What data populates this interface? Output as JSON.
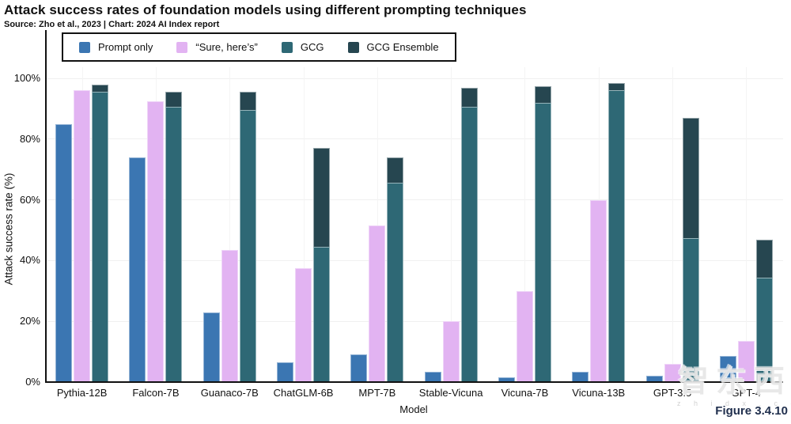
{
  "header": {
    "title": "Attack success rates of foundation models using different prompting techniques",
    "source": "Source: Zho et al., 2023 | Chart: 2024 AI Index report"
  },
  "figure_label": "Figure 3.4.10",
  "watermark": {
    "text": "智东西",
    "subtext": "z h i d x . c o m"
  },
  "chart_data": {
    "type": "bar",
    "title": "Attack success rates of foundation models using different prompting techniques",
    "xlabel": "Model",
    "ylabel": "Attack success rate (%)",
    "ylim": [
      0,
      110
    ],
    "yticks": [
      0,
      20,
      40,
      60,
      80,
      100
    ],
    "ytick_labels": [
      "0%",
      "20%",
      "40%",
      "60%",
      "80%",
      "100%"
    ],
    "grid": true,
    "legend_position": "top",
    "categories": [
      "Pythia-12B",
      "Falcon-7B",
      "Guanaco-7B",
      "ChatGLM-6B",
      "MPT-7B",
      "Stable-Vicuna",
      "Vicuna-7B",
      "Vicuna-13B",
      "GPT-3.5",
      "GPT-4"
    ],
    "series": [
      {
        "name": "Prompt only",
        "color": "#3b76b2",
        "values": [
          85,
          74,
          23,
          6.5,
          9,
          3.5,
          1.5,
          3.5,
          2,
          8.5
        ]
      },
      {
        "name": "“Sure, here’s”",
        "color": "#e2b3f2",
        "values": [
          96,
          92.5,
          43.5,
          37.5,
          51.5,
          20,
          30,
          60,
          6,
          13.5
        ]
      },
      {
        "name": "GCG",
        "color": "#2e6875",
        "values": [
          95.5,
          90.5,
          89.5,
          44.5,
          65.5,
          90.5,
          92,
          96,
          47.5,
          34.5
        ]
      },
      {
        "name": "GCG Ensemble",
        "color": "#264650",
        "values": [
          98,
          95.5,
          95.5,
          77,
          74,
          97,
          97.5,
          98.5,
          87,
          47
        ]
      }
    ],
    "render_note": "GCG Ensemble is drawn as the dark upper segment of the third column; GCG is the lighter teal lower segment"
  }
}
